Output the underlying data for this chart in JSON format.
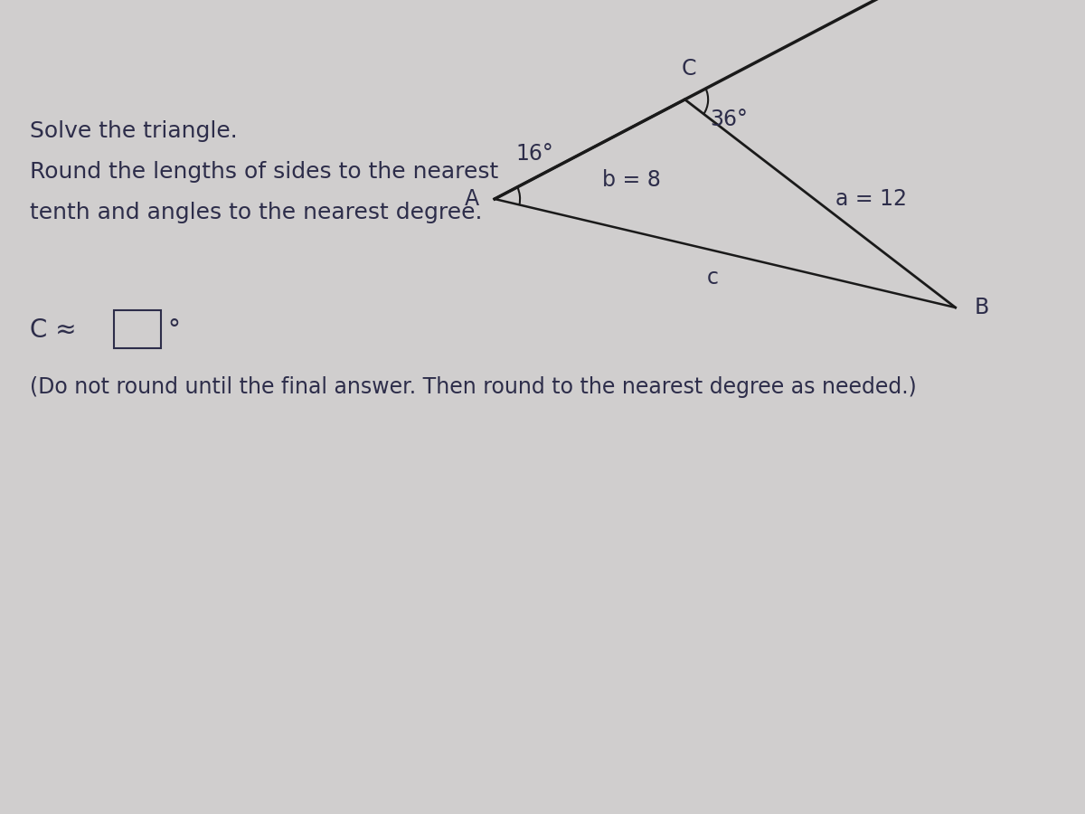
{
  "bg_color": "#d0cece",
  "text_color": "#2d2d4a",
  "title_line1": "Solve the triangle.",
  "title_line2": "Round the lengths of sides to the nearest",
  "title_line3": "tenth and angles to the nearest degree.",
  "answer_line": "C ≈",
  "note_line": "(Do not round until the final answer. Then round to the nearest degree as needed.)",
  "angle_A_label": "16°",
  "angle_C_label": "36°",
  "side_b_label": "b = 8",
  "side_a_label": "a = 12",
  "side_c_label": "c",
  "vertex_A_label": "A",
  "vertex_B_label": "B",
  "vertex_C_label": "C",
  "font_size_main": 18,
  "font_size_labels": 17,
  "font_size_answer": 20,
  "font_size_note": 17,
  "triangle_line_color": "#1a1a1a",
  "extended_line_color": "#1a1a1a"
}
